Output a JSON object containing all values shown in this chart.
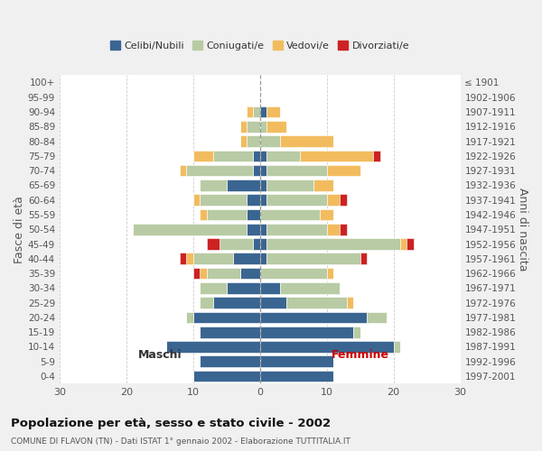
{
  "age_groups": [
    "0-4",
    "5-9",
    "10-14",
    "15-19",
    "20-24",
    "25-29",
    "30-34",
    "35-39",
    "40-44",
    "45-49",
    "50-54",
    "55-59",
    "60-64",
    "65-69",
    "70-74",
    "75-79",
    "80-84",
    "85-89",
    "90-94",
    "95-99",
    "100+"
  ],
  "birth_years": [
    "1997-2001",
    "1992-1996",
    "1987-1991",
    "1982-1986",
    "1977-1981",
    "1972-1976",
    "1967-1971",
    "1962-1966",
    "1957-1961",
    "1952-1956",
    "1947-1951",
    "1942-1946",
    "1937-1941",
    "1932-1936",
    "1927-1931",
    "1922-1926",
    "1917-1921",
    "1912-1916",
    "1907-1911",
    "1902-1906",
    "≤ 1901"
  ],
  "maschi": {
    "celibi": [
      10,
      9,
      14,
      9,
      10,
      7,
      5,
      3,
      4,
      1,
      2,
      2,
      2,
      5,
      1,
      1,
      0,
      0,
      0,
      0,
      0
    ],
    "coniugati": [
      0,
      0,
      0,
      0,
      1,
      2,
      4,
      5,
      6,
      5,
      17,
      6,
      7,
      4,
      10,
      6,
      2,
      2,
      1,
      0,
      0
    ],
    "vedovi": [
      0,
      0,
      0,
      0,
      0,
      0,
      0,
      1,
      1,
      0,
      0,
      1,
      1,
      0,
      1,
      3,
      1,
      1,
      1,
      0,
      0
    ],
    "divorziati": [
      0,
      0,
      0,
      0,
      0,
      0,
      0,
      1,
      1,
      2,
      0,
      0,
      0,
      0,
      0,
      0,
      0,
      0,
      0,
      0,
      0
    ]
  },
  "femmine": {
    "nubili": [
      11,
      11,
      20,
      14,
      16,
      4,
      3,
      0,
      1,
      1,
      1,
      0,
      1,
      1,
      1,
      1,
      0,
      0,
      1,
      0,
      0
    ],
    "coniugate": [
      0,
      0,
      1,
      1,
      3,
      9,
      9,
      10,
      14,
      20,
      9,
      9,
      9,
      7,
      9,
      5,
      3,
      1,
      0,
      0,
      0
    ],
    "vedove": [
      0,
      0,
      0,
      0,
      0,
      1,
      0,
      1,
      0,
      1,
      2,
      2,
      2,
      3,
      5,
      11,
      8,
      3,
      2,
      0,
      0
    ],
    "divorziate": [
      0,
      0,
      0,
      0,
      0,
      0,
      0,
      0,
      1,
      1,
      1,
      0,
      1,
      0,
      0,
      1,
      0,
      0,
      0,
      0,
      0
    ]
  },
  "colors": {
    "celibi_nubili": "#3a6591",
    "coniugati": "#b8cba4",
    "vedovi": "#f2bc5e",
    "divorziati": "#cc2222"
  },
  "title": "Popolazione per età, sesso e stato civile - 2002",
  "subtitle": "COMUNE DI FLAVON (TN) - Dati ISTAT 1° gennaio 2002 - Elaborazione TUTTITALIA.IT",
  "ylabel_left": "Fasce di età",
  "ylabel_right": "Anni di nascita",
  "xlabel_maschi": "Maschi",
  "xlabel_femmine": "Femmine",
  "xlim": 30,
  "bg_color": "#f0f0f0",
  "plot_bg": "#ffffff"
}
